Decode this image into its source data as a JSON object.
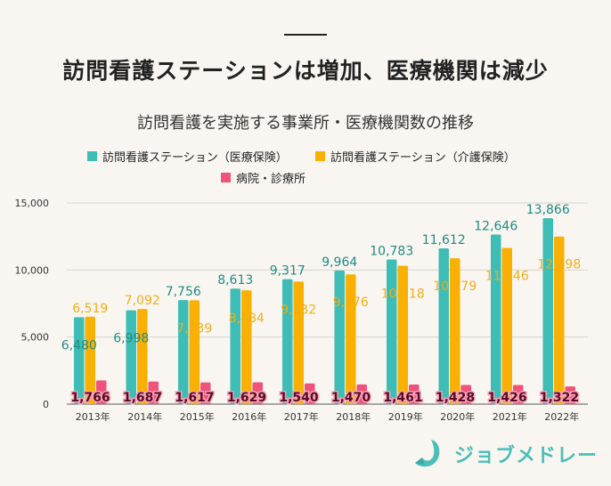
{
  "headline": "訪問看護ステーションは増加、医療機関は減少",
  "chart_data": {
    "type": "bar",
    "title": "訪問看護を実施する事業所・医療機関数の推移",
    "categories": [
      "2013年",
      "2014年",
      "2015年",
      "2016年",
      "2017年",
      "2018年",
      "2019年",
      "2020年",
      "2021年",
      "2022年"
    ],
    "series": [
      {
        "name": "訪問看護ステーション（医療保険）",
        "color": "#3dbdb5",
        "label_color": "#1f8a84",
        "values": [
          6480,
          6998,
          7756,
          8613,
          9317,
          9964,
          10783,
          11612,
          12646,
          13866
        ]
      },
      {
        "name": "訪問看護ステーション（介護保険）",
        "color": "#f9b000",
        "label_color": "#f2ad18",
        "values": [
          6519,
          7092,
          7739,
          8484,
          9132,
          9676,
          10318,
          10879,
          11646,
          12498
        ]
      },
      {
        "name": "病院・診療所",
        "color": "#f0527a",
        "label_color": "#5a0a25",
        "values": [
          1766,
          1687,
          1617,
          1629,
          1540,
          1470,
          1461,
          1428,
          1426,
          1322
        ]
      }
    ],
    "ylim": [
      0,
      15000
    ],
    "yticks": [
      0,
      5000,
      10000,
      15000
    ],
    "ytick_labels": [
      "0",
      "5,000",
      "10,000",
      "15,000"
    ],
    "grid": true,
    "legend_position": "top"
  },
  "logo": {
    "text": "ジョブメドレー",
    "color": "#4bbfb7"
  }
}
